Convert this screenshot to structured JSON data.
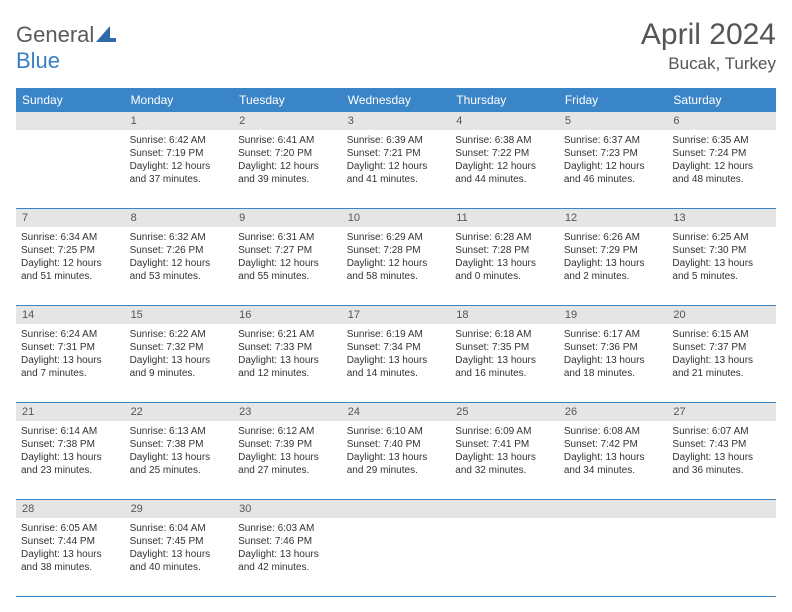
{
  "logo": {
    "text1": "General",
    "text2": "Blue"
  },
  "title": {
    "month": "April 2024",
    "location": "Bucak, Turkey"
  },
  "colors": {
    "header_bg": "#3a85c8",
    "header_text": "#ffffff",
    "daynum_bg": "#e5e5e5",
    "text": "#333333",
    "logo_gray": "#5a5a5a",
    "logo_blue": "#3a7fc4"
  },
  "dayHeaders": [
    "Sunday",
    "Monday",
    "Tuesday",
    "Wednesday",
    "Thursday",
    "Friday",
    "Saturday"
  ],
  "weeks": [
    [
      {
        "num": "",
        "empty": true
      },
      {
        "num": "1",
        "sunrise": "Sunrise: 6:42 AM",
        "sunset": "Sunset: 7:19 PM",
        "daylight": "Daylight: 12 hours and 37 minutes."
      },
      {
        "num": "2",
        "sunrise": "Sunrise: 6:41 AM",
        "sunset": "Sunset: 7:20 PM",
        "daylight": "Daylight: 12 hours and 39 minutes."
      },
      {
        "num": "3",
        "sunrise": "Sunrise: 6:39 AM",
        "sunset": "Sunset: 7:21 PM",
        "daylight": "Daylight: 12 hours and 41 minutes."
      },
      {
        "num": "4",
        "sunrise": "Sunrise: 6:38 AM",
        "sunset": "Sunset: 7:22 PM",
        "daylight": "Daylight: 12 hours and 44 minutes."
      },
      {
        "num": "5",
        "sunrise": "Sunrise: 6:37 AM",
        "sunset": "Sunset: 7:23 PM",
        "daylight": "Daylight: 12 hours and 46 minutes."
      },
      {
        "num": "6",
        "sunrise": "Sunrise: 6:35 AM",
        "sunset": "Sunset: 7:24 PM",
        "daylight": "Daylight: 12 hours and 48 minutes."
      }
    ],
    [
      {
        "num": "7",
        "sunrise": "Sunrise: 6:34 AM",
        "sunset": "Sunset: 7:25 PM",
        "daylight": "Daylight: 12 hours and 51 minutes."
      },
      {
        "num": "8",
        "sunrise": "Sunrise: 6:32 AM",
        "sunset": "Sunset: 7:26 PM",
        "daylight": "Daylight: 12 hours and 53 minutes."
      },
      {
        "num": "9",
        "sunrise": "Sunrise: 6:31 AM",
        "sunset": "Sunset: 7:27 PM",
        "daylight": "Daylight: 12 hours and 55 minutes."
      },
      {
        "num": "10",
        "sunrise": "Sunrise: 6:29 AM",
        "sunset": "Sunset: 7:28 PM",
        "daylight": "Daylight: 12 hours and 58 minutes."
      },
      {
        "num": "11",
        "sunrise": "Sunrise: 6:28 AM",
        "sunset": "Sunset: 7:28 PM",
        "daylight": "Daylight: 13 hours and 0 minutes."
      },
      {
        "num": "12",
        "sunrise": "Sunrise: 6:26 AM",
        "sunset": "Sunset: 7:29 PM",
        "daylight": "Daylight: 13 hours and 2 minutes."
      },
      {
        "num": "13",
        "sunrise": "Sunrise: 6:25 AM",
        "sunset": "Sunset: 7:30 PM",
        "daylight": "Daylight: 13 hours and 5 minutes."
      }
    ],
    [
      {
        "num": "14",
        "sunrise": "Sunrise: 6:24 AM",
        "sunset": "Sunset: 7:31 PM",
        "daylight": "Daylight: 13 hours and 7 minutes."
      },
      {
        "num": "15",
        "sunrise": "Sunrise: 6:22 AM",
        "sunset": "Sunset: 7:32 PM",
        "daylight": "Daylight: 13 hours and 9 minutes."
      },
      {
        "num": "16",
        "sunrise": "Sunrise: 6:21 AM",
        "sunset": "Sunset: 7:33 PM",
        "daylight": "Daylight: 13 hours and 12 minutes."
      },
      {
        "num": "17",
        "sunrise": "Sunrise: 6:19 AM",
        "sunset": "Sunset: 7:34 PM",
        "daylight": "Daylight: 13 hours and 14 minutes."
      },
      {
        "num": "18",
        "sunrise": "Sunrise: 6:18 AM",
        "sunset": "Sunset: 7:35 PM",
        "daylight": "Daylight: 13 hours and 16 minutes."
      },
      {
        "num": "19",
        "sunrise": "Sunrise: 6:17 AM",
        "sunset": "Sunset: 7:36 PM",
        "daylight": "Daylight: 13 hours and 18 minutes."
      },
      {
        "num": "20",
        "sunrise": "Sunrise: 6:15 AM",
        "sunset": "Sunset: 7:37 PM",
        "daylight": "Daylight: 13 hours and 21 minutes."
      }
    ],
    [
      {
        "num": "21",
        "sunrise": "Sunrise: 6:14 AM",
        "sunset": "Sunset: 7:38 PM",
        "daylight": "Daylight: 13 hours and 23 minutes."
      },
      {
        "num": "22",
        "sunrise": "Sunrise: 6:13 AM",
        "sunset": "Sunset: 7:38 PM",
        "daylight": "Daylight: 13 hours and 25 minutes."
      },
      {
        "num": "23",
        "sunrise": "Sunrise: 6:12 AM",
        "sunset": "Sunset: 7:39 PM",
        "daylight": "Daylight: 13 hours and 27 minutes."
      },
      {
        "num": "24",
        "sunrise": "Sunrise: 6:10 AM",
        "sunset": "Sunset: 7:40 PM",
        "daylight": "Daylight: 13 hours and 29 minutes."
      },
      {
        "num": "25",
        "sunrise": "Sunrise: 6:09 AM",
        "sunset": "Sunset: 7:41 PM",
        "daylight": "Daylight: 13 hours and 32 minutes."
      },
      {
        "num": "26",
        "sunrise": "Sunrise: 6:08 AM",
        "sunset": "Sunset: 7:42 PM",
        "daylight": "Daylight: 13 hours and 34 minutes."
      },
      {
        "num": "27",
        "sunrise": "Sunrise: 6:07 AM",
        "sunset": "Sunset: 7:43 PM",
        "daylight": "Daylight: 13 hours and 36 minutes."
      }
    ],
    [
      {
        "num": "28",
        "sunrise": "Sunrise: 6:05 AM",
        "sunset": "Sunset: 7:44 PM",
        "daylight": "Daylight: 13 hours and 38 minutes."
      },
      {
        "num": "29",
        "sunrise": "Sunrise: 6:04 AM",
        "sunset": "Sunset: 7:45 PM",
        "daylight": "Daylight: 13 hours and 40 minutes."
      },
      {
        "num": "30",
        "sunrise": "Sunrise: 6:03 AM",
        "sunset": "Sunset: 7:46 PM",
        "daylight": "Daylight: 13 hours and 42 minutes."
      },
      {
        "num": "",
        "empty": true
      },
      {
        "num": "",
        "empty": true
      },
      {
        "num": "",
        "empty": true
      },
      {
        "num": "",
        "empty": true
      }
    ]
  ]
}
